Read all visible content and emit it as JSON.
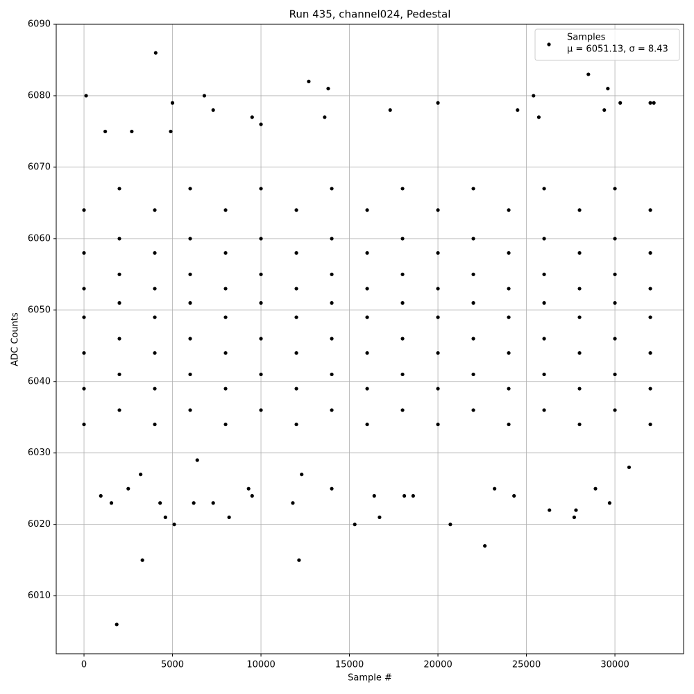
{
  "chart_data": {
    "type": "scatter",
    "title": "Run 435, channel024, Pedestal",
    "x_label": "Sample #",
    "y_label": "ADC Counts",
    "legend_note": "μ = 6051.13, σ = 8.43",
    "legend": "upper right",
    "grid": true,
    "xlim": [
      -1570,
      33880
    ],
    "ylim": [
      6001.9,
      6090
    ],
    "xticks": [
      0,
      5000,
      10000,
      15000,
      20000,
      25000,
      30000
    ],
    "yticks": [
      6010,
      6020,
      6030,
      6040,
      6050,
      6060,
      6070,
      6080,
      6090
    ],
    "series": [
      {
        "name": "Samples",
        "color": "#000000",
        "x": [
          0,
          0,
          0,
          0,
          0,
          0,
          0,
          2000,
          2000,
          2000,
          2000,
          2000,
          2000,
          2000,
          4000,
          4000,
          4000,
          4000,
          4000,
          4000,
          4000,
          6000,
          6000,
          6000,
          6000,
          6000,
          6000,
          6000,
          8000,
          8000,
          8000,
          8000,
          8000,
          8000,
          8000,
          10000,
          10000,
          10000,
          10000,
          10000,
          10000,
          10000,
          12000,
          12000,
          12000,
          12000,
          12000,
          12000,
          12000,
          14000,
          14000,
          14000,
          14000,
          14000,
          14000,
          14000,
          16000,
          16000,
          16000,
          16000,
          16000,
          16000,
          16000,
          18000,
          18000,
          18000,
          18000,
          18000,
          18000,
          18000,
          20000,
          20000,
          20000,
          20000,
          20000,
          20000,
          20000,
          22000,
          22000,
          22000,
          22000,
          22000,
          22000,
          22000,
          24000,
          24000,
          24000,
          24000,
          24000,
          24000,
          24000,
          26000,
          26000,
          26000,
          26000,
          26000,
          26000,
          26000,
          28000,
          28000,
          28000,
          28000,
          28000,
          28000,
          28000,
          30000,
          30000,
          30000,
          30000,
          30000,
          30000,
          30000,
          32000,
          32000,
          32000,
          32000,
          32000,
          32000,
          32000,
          120,
          4050,
          1850,
          3300,
          5100,
          4600,
          4300,
          1550,
          950,
          8200,
          7300,
          6200,
          12150,
          11800,
          12700,
          13800,
          15300,
          16700,
          16400,
          20700,
          22650,
          26300,
          27800,
          27700,
          28500,
          29600,
          29700,
          25400,
          6800,
          5000,
          20000,
          32000,
          32200,
          30300,
          4900,
          7300,
          17300,
          24500,
          2700,
          1200,
          9500,
          10000,
          13600,
          25700,
          29400,
          9500,
          9300,
          2500,
          14000,
          23200,
          24300,
          18100,
          18600,
          28900,
          3200,
          12300,
          6400,
          30800
        ],
        "values": [
          6034,
          6039,
          6044,
          6049,
          6053,
          6058,
          6064,
          6036,
          6041,
          6046,
          6051,
          6055,
          6060,
          6067,
          6034,
          6039,
          6044,
          6049,
          6053,
          6058,
          6064,
          6036,
          6041,
          6046,
          6051,
          6055,
          6060,
          6067,
          6034,
          6039,
          6044,
          6049,
          6053,
          6058,
          6064,
          6036,
          6041,
          6046,
          6051,
          6055,
          6060,
          6067,
          6034,
          6039,
          6044,
          6049,
          6053,
          6058,
          6064,
          6036,
          6041,
          6046,
          6051,
          6055,
          6060,
          6067,
          6034,
          6039,
          6044,
          6049,
          6053,
          6058,
          6064,
          6036,
          6041,
          6046,
          6051,
          6055,
          6060,
          6067,
          6034,
          6039,
          6044,
          6049,
          6053,
          6058,
          6064,
          6036,
          6041,
          6046,
          6051,
          6055,
          6060,
          6067,
          6034,
          6039,
          6044,
          6049,
          6053,
          6058,
          6064,
          6036,
          6041,
          6046,
          6051,
          6055,
          6060,
          6067,
          6034,
          6039,
          6044,
          6049,
          6053,
          6058,
          6064,
          6036,
          6041,
          6046,
          6051,
          6055,
          6060,
          6067,
          6034,
          6039,
          6044,
          6049,
          6053,
          6058,
          6064,
          6080,
          6086,
          6006,
          6015,
          6020,
          6021,
          6023,
          6023,
          6024,
          6021,
          6023,
          6023,
          6015,
          6023,
          6082,
          6081,
          6020,
          6021,
          6024,
          6020,
          6017,
          6022,
          6022,
          6021,
          6083,
          6081,
          6023,
          6080,
          6080,
          6079,
          6079,
          6079,
          6079,
          6079,
          6075,
          6078,
          6078,
          6078,
          6075,
          6075,
          6077,
          6076,
          6077,
          6077,
          6078,
          6024,
          6025,
          6025,
          6025,
          6025,
          6024,
          6024,
          6024,
          6025,
          6027,
          6027,
          6029,
          6028
        ]
      }
    ]
  }
}
